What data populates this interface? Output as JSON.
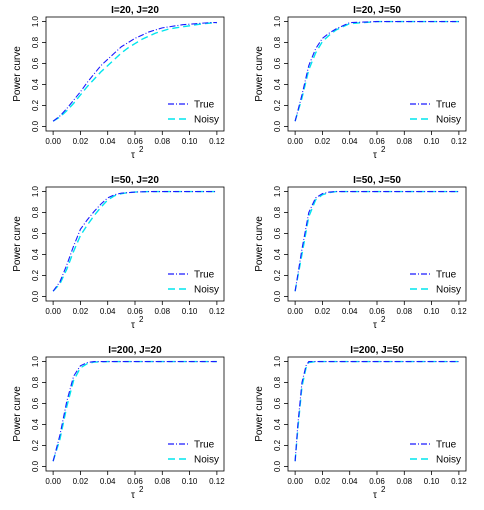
{
  "colors": {
    "true_series": "#1a1aff",
    "noisy_series": "#00e5ee",
    "axis": "#000000"
  },
  "chart_data": [
    {
      "type": "line",
      "title": "I=20, J=20",
      "xlabel": "τ",
      "xlabel_superscript": "2",
      "ylabel": "Power curve",
      "xlim": [
        0,
        0.12
      ],
      "ylim": [
        0,
        1
      ],
      "x_ticks": [
        "0.00",
        "0.02",
        "0.04",
        "0.06",
        "0.08",
        "0.10",
        "0.12"
      ],
      "y_ticks": [
        "0.0",
        "0.2",
        "0.4",
        "0.6",
        "0.8",
        "1.0"
      ],
      "legend": "bottom-right",
      "x": [
        0,
        0.005,
        0.01,
        0.015,
        0.02,
        0.025,
        0.03,
        0.035,
        0.04,
        0.045,
        0.05,
        0.055,
        0.06,
        0.065,
        0.07,
        0.075,
        0.08,
        0.085,
        0.09,
        0.095,
        0.1,
        0.105,
        0.11,
        0.115,
        0.12
      ],
      "series": [
        {
          "name": "True",
          "values": [
            0.05,
            0.1,
            0.17,
            0.25,
            0.33,
            0.42,
            0.5,
            0.58,
            0.64,
            0.7,
            0.76,
            0.8,
            0.84,
            0.87,
            0.9,
            0.92,
            0.94,
            0.95,
            0.96,
            0.97,
            0.975,
            0.98,
            0.985,
            0.99,
            0.99
          ]
        },
        {
          "name": "Noisy",
          "values": [
            0.05,
            0.09,
            0.15,
            0.22,
            0.3,
            0.38,
            0.45,
            0.52,
            0.58,
            0.64,
            0.7,
            0.75,
            0.79,
            0.83,
            0.86,
            0.89,
            0.91,
            0.93,
            0.94,
            0.95,
            0.96,
            0.97,
            0.98,
            0.985,
            0.99
          ]
        }
      ]
    },
    {
      "type": "line",
      "title": "I=20, J=50",
      "xlabel": "τ",
      "xlabel_superscript": "2",
      "ylabel": "Power curve",
      "xlim": [
        0,
        0.12
      ],
      "ylim": [
        0,
        1
      ],
      "x_ticks": [
        "0.00",
        "0.02",
        "0.04",
        "0.06",
        "0.08",
        "0.10",
        "0.12"
      ],
      "y_ticks": [
        "0.0",
        "0.2",
        "0.4",
        "0.6",
        "0.8",
        "1.0"
      ],
      "legend": "bottom-right",
      "x": [
        0,
        0.005,
        0.01,
        0.015,
        0.02,
        0.025,
        0.03,
        0.035,
        0.04,
        0.05,
        0.06,
        0.07,
        0.08,
        0.09,
        0.1,
        0.11,
        0.12
      ],
      "series": [
        {
          "name": "True",
          "values": [
            0.05,
            0.3,
            0.58,
            0.74,
            0.84,
            0.89,
            0.93,
            0.96,
            0.99,
            0.995,
            1,
            1,
            1,
            1,
            1,
            1,
            1
          ]
        },
        {
          "name": "Noisy",
          "values": [
            0.05,
            0.27,
            0.54,
            0.7,
            0.81,
            0.87,
            0.92,
            0.95,
            0.98,
            0.99,
            1,
            1,
            1,
            1,
            1,
            1,
            1
          ]
        }
      ]
    },
    {
      "type": "line",
      "title": "I=50, J=20",
      "xlabel": "τ",
      "xlabel_superscript": "2",
      "ylabel": "Power curve",
      "xlim": [
        0,
        0.12
      ],
      "ylim": [
        0,
        1
      ],
      "x_ticks": [
        "0.00",
        "0.02",
        "0.04",
        "0.06",
        "0.08",
        "0.10",
        "0.12"
      ],
      "y_ticks": [
        "0.0",
        "0.2",
        "0.4",
        "0.6",
        "0.8",
        "1.0"
      ],
      "legend": "bottom-right",
      "x": [
        0,
        0.005,
        0.01,
        0.015,
        0.02,
        0.025,
        0.03,
        0.035,
        0.04,
        0.045,
        0.05,
        0.055,
        0.06,
        0.07,
        0.08,
        0.09,
        0.1,
        0.11,
        0.12
      ],
      "series": [
        {
          "name": "True",
          "values": [
            0.05,
            0.14,
            0.3,
            0.48,
            0.64,
            0.73,
            0.81,
            0.88,
            0.94,
            0.97,
            0.985,
            0.99,
            0.995,
            1,
            1,
            1,
            1,
            1,
            1
          ]
        },
        {
          "name": "Noisy",
          "values": [
            0.05,
            0.12,
            0.26,
            0.43,
            0.58,
            0.68,
            0.77,
            0.85,
            0.92,
            0.96,
            0.98,
            0.99,
            0.995,
            1,
            1,
            1,
            1,
            1,
            1
          ]
        }
      ]
    },
    {
      "type": "line",
      "title": "I=50, J=50",
      "xlabel": "τ",
      "xlabel_superscript": "2",
      "ylabel": "Power curve",
      "xlim": [
        0,
        0.12
      ],
      "ylim": [
        0,
        1
      ],
      "x_ticks": [
        "0.00",
        "0.02",
        "0.04",
        "0.06",
        "0.08",
        "0.10",
        "0.12"
      ],
      "y_ticks": [
        "0.0",
        "0.2",
        "0.4",
        "0.6",
        "0.8",
        "1.0"
      ],
      "legend": "bottom-right",
      "x": [
        0,
        0.005,
        0.01,
        0.015,
        0.02,
        0.025,
        0.03,
        0.04,
        0.05,
        0.06,
        0.08,
        0.1,
        0.12
      ],
      "series": [
        {
          "name": "True",
          "values": [
            0.05,
            0.45,
            0.8,
            0.94,
            0.98,
            0.995,
            1,
            1,
            1,
            1,
            1,
            1,
            1
          ]
        },
        {
          "name": "Noisy",
          "values": [
            0.05,
            0.4,
            0.76,
            0.92,
            0.97,
            0.99,
            1,
            1,
            1,
            1,
            1,
            1,
            1
          ]
        }
      ]
    },
    {
      "type": "line",
      "title": "I=200, J=20",
      "xlabel": "τ",
      "xlabel_superscript": "2",
      "ylabel": "Power curve",
      "xlim": [
        0,
        0.12
      ],
      "ylim": [
        0,
        1
      ],
      "x_ticks": [
        "0.00",
        "0.02",
        "0.04",
        "0.06",
        "0.08",
        "0.10",
        "0.12"
      ],
      "y_ticks": [
        "0.0",
        "0.2",
        "0.4",
        "0.6",
        "0.8",
        "1.0"
      ],
      "legend": "bottom-right",
      "x": [
        0,
        0.005,
        0.01,
        0.015,
        0.02,
        0.025,
        0.03,
        0.04,
        0.05,
        0.06,
        0.08,
        0.1,
        0.12
      ],
      "series": [
        {
          "name": "True",
          "values": [
            0.05,
            0.3,
            0.62,
            0.86,
            0.96,
            0.99,
            1,
            1,
            1,
            1,
            1,
            1,
            1
          ]
        },
        {
          "name": "Noisy",
          "values": [
            0.05,
            0.26,
            0.57,
            0.82,
            0.94,
            0.98,
            0.995,
            1,
            1,
            1,
            1,
            1,
            1
          ]
        }
      ]
    },
    {
      "type": "line",
      "title": "I=200, J=50",
      "xlabel": "τ",
      "xlabel_superscript": "2",
      "ylabel": "Power curve",
      "xlim": [
        0,
        0.12
      ],
      "ylim": [
        0,
        1
      ],
      "x_ticks": [
        "0.00",
        "0.02",
        "0.04",
        "0.06",
        "0.08",
        "0.10",
        "0.12"
      ],
      "y_ticks": [
        "0.0",
        "0.2",
        "0.4",
        "0.6",
        "0.8",
        "1.0"
      ],
      "legend": "bottom-right",
      "x": [
        0,
        0.002,
        0.005,
        0.008,
        0.01,
        0.015,
        0.02,
        0.04,
        0.06,
        0.08,
        0.1,
        0.12
      ],
      "series": [
        {
          "name": "True",
          "values": [
            0.05,
            0.4,
            0.8,
            0.96,
            1,
            1,
            1,
            1,
            1,
            1,
            1,
            1
          ]
        },
        {
          "name": "Noisy",
          "values": [
            0.05,
            0.36,
            0.76,
            0.94,
            0.99,
            1,
            1,
            1,
            1,
            1,
            1,
            1
          ]
        }
      ]
    }
  ]
}
